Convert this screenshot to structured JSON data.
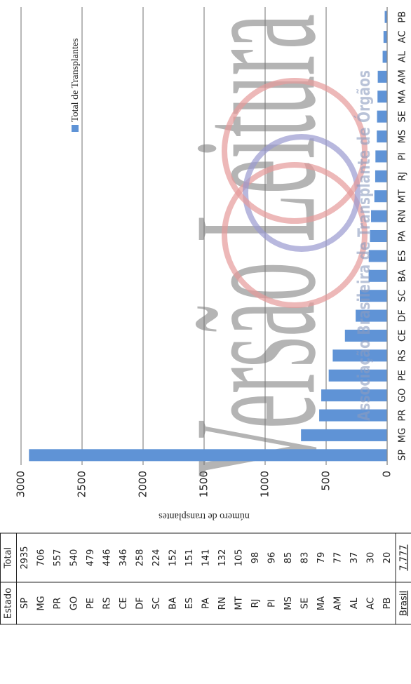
{
  "chart_data": {
    "type": "bar",
    "categories": [
      "SP",
      "MG",
      "PR",
      "GO",
      "PE",
      "RS",
      "CE",
      "DF",
      "SC",
      "BA",
      "ES",
      "PA",
      "RN",
      "MT",
      "RJ",
      "PI",
      "MS",
      "SE",
      "MA",
      "AM",
      "AL",
      "AC",
      "PB"
    ],
    "values": [
      2935,
      706,
      557,
      540,
      479,
      446,
      346,
      258,
      224,
      152,
      151,
      141,
      132,
      105,
      98,
      96,
      85,
      83,
      79,
      77,
      37,
      30,
      20
    ],
    "color": "#5f93d6",
    "ylim": [
      0,
      3000
    ],
    "yticks": [
      0,
      500,
      1000,
      1500,
      2000,
      2500,
      3000
    ],
    "y_label": "número de transplantes",
    "legend": "Total de Transplantes",
    "legend_position": "upper right",
    "grid": true
  },
  "table": {
    "header": [
      "Estado",
      "Total"
    ],
    "rows": [
      [
        "SP",
        2935
      ],
      [
        "MG",
        706
      ],
      [
        "PR",
        557
      ],
      [
        "GO",
        540
      ],
      [
        "PE",
        479
      ],
      [
        "RS",
        446
      ],
      [
        "CE",
        346
      ],
      [
        "DF",
        258
      ],
      [
        "SC",
        224
      ],
      [
        "BA",
        152
      ],
      [
        "ES",
        151
      ],
      [
        "PA",
        141
      ],
      [
        "RN",
        132
      ],
      [
        "MT",
        105
      ],
      [
        "RJ",
        98
      ],
      [
        "PI",
        96
      ],
      [
        "MS",
        85
      ],
      [
        "SE",
        83
      ],
      [
        "MA",
        79
      ],
      [
        "AM",
        77
      ],
      [
        "AL",
        37
      ],
      [
        "AC",
        30
      ],
      [
        "PB",
        20
      ]
    ],
    "footer": [
      "Brasil",
      "7.777"
    ]
  },
  "watermark": {
    "main": "Versão Leitura",
    "organization": "Associação Brasileira de Transplante de Órgãos"
  }
}
